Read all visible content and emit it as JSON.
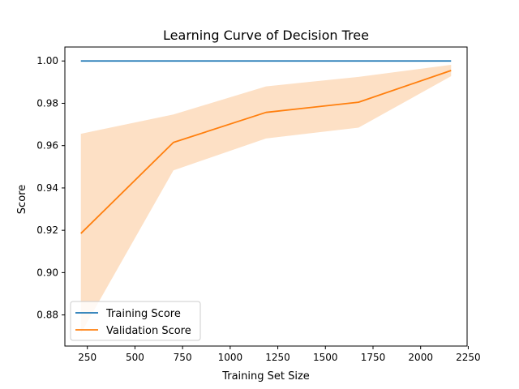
{
  "chart_data": {
    "type": "line",
    "title": "Learning Curve of Decision Tree",
    "xlabel": "Training Set Size",
    "ylabel": "Score",
    "x": [
      216,
      702,
      1188,
      1674,
      2160
    ],
    "xlim": [
      132,
      2244
    ],
    "ylim": [
      0.8653,
      1.0066
    ],
    "xticks": [
      250,
      500,
      750,
      1000,
      1250,
      1500,
      1750,
      2000,
      2250
    ],
    "yticks": [
      0.88,
      0.9,
      0.92,
      0.94,
      0.96,
      0.98,
      1.0
    ],
    "series": [
      {
        "name": "Training Score",
        "color": "#1f77b4",
        "values": [
          1.0,
          1.0,
          1.0,
          1.0,
          1.0
        ]
      },
      {
        "name": "Validation Score",
        "color": "#ff7f0e",
        "values": [
          0.9185,
          0.9615,
          0.9757,
          0.9805,
          0.9955
        ],
        "band_lower": [
          0.8713,
          0.9483,
          0.9634,
          0.9685,
          0.9928
        ],
        "band_upper": [
          0.9656,
          0.9747,
          0.988,
          0.9925,
          0.9982
        ],
        "band_color": "#fde0c5"
      }
    ],
    "grid": false,
    "legend": {
      "position": "lower left",
      "entries": [
        "Training Score",
        "Validation Score"
      ]
    }
  }
}
